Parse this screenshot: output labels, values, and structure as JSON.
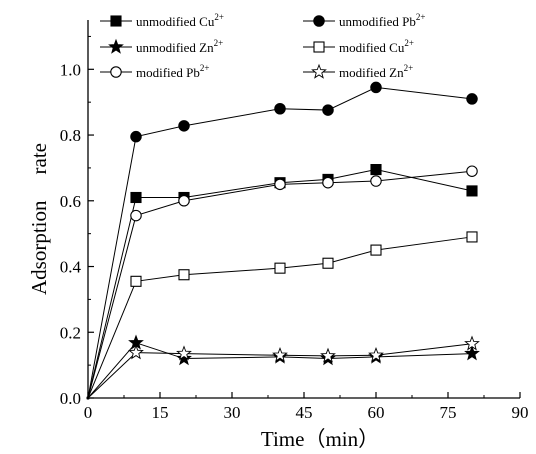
{
  "chart_data": {
    "type": "line",
    "title": "",
    "xlabel": "Time（min）",
    "ylabel_parts": [
      "Adsorption",
      "rate"
    ],
    "xlim": [
      0,
      90
    ],
    "ylim": [
      0,
      1.15
    ],
    "xticks": [
      0,
      15,
      30,
      45,
      60,
      75,
      90
    ],
    "xtick_labels": [
      "0",
      "15",
      "30",
      "45",
      "60",
      "75",
      "90"
    ],
    "yticks": [
      0.0,
      0.2,
      0.4,
      0.6,
      0.8,
      1.0
    ],
    "ytick_labels": [
      "0.0",
      "0.2",
      "0.4",
      "0.6",
      "0.8",
      "1.0"
    ],
    "legend_position": "top",
    "grid": false,
    "series": [
      {
        "name": "unmodified Cu",
        "ion": "Cu",
        "marker": "square-filled",
        "x": [
          0,
          10,
          20,
          40,
          50,
          60,
          80
        ],
        "y": [
          0.0,
          0.61,
          0.61,
          0.655,
          0.665,
          0.695,
          0.63
        ]
      },
      {
        "name": "unmodified Pb",
        "ion": "Pb",
        "marker": "circle-filled",
        "x": [
          0,
          10,
          20,
          40,
          50,
          60,
          80
        ],
        "y": [
          0.0,
          0.795,
          0.828,
          0.88,
          0.876,
          0.945,
          0.91
        ]
      },
      {
        "name": "unmodified Zn",
        "ion": "Zn",
        "marker": "star-filled",
        "x": [
          0,
          10,
          20,
          40,
          50,
          60,
          80
        ],
        "y": [
          0.0,
          0.168,
          0.12,
          0.125,
          0.12,
          0.125,
          0.135
        ]
      },
      {
        "name": "modified Cu",
        "ion": "Cu",
        "marker": "square-open",
        "x": [
          0,
          10,
          20,
          40,
          50,
          60,
          80
        ],
        "y": [
          0.0,
          0.355,
          0.375,
          0.395,
          0.41,
          0.45,
          0.49
        ]
      },
      {
        "name": "modified Pb",
        "ion": "Pb",
        "marker": "circle-open",
        "x": [
          0,
          10,
          20,
          40,
          50,
          60,
          80
        ],
        "y": [
          0.0,
          0.555,
          0.6,
          0.65,
          0.655,
          0.66,
          0.69
        ]
      },
      {
        "name": "modified Zn",
        "ion": "Zn",
        "marker": "star-open",
        "x": [
          0,
          10,
          20,
          40,
          50,
          60,
          80
        ],
        "y": [
          0.0,
          0.138,
          0.135,
          0.13,
          0.128,
          0.13,
          0.165
        ]
      }
    ],
    "legend": [
      {
        "series": 0,
        "label": "unmodified Cu",
        "superscript": "2+"
      },
      {
        "series": 1,
        "label": "unmodified Pb",
        "superscript": "2+"
      },
      {
        "series": 2,
        "label": "unmodified Zn",
        "superscript": "2+"
      },
      {
        "series": 3,
        "label": "modified Cu",
        "superscript": "2+"
      },
      {
        "series": 4,
        "label": "modified Pb",
        "superscript": "2+"
      },
      {
        "series": 5,
        "label": "modified Zn",
        "superscript": "2+"
      }
    ],
    "colors": {
      "line": "#000000",
      "marker_fill": "#000000",
      "open_fill": "#ffffff",
      "background": "#ffffff"
    }
  }
}
